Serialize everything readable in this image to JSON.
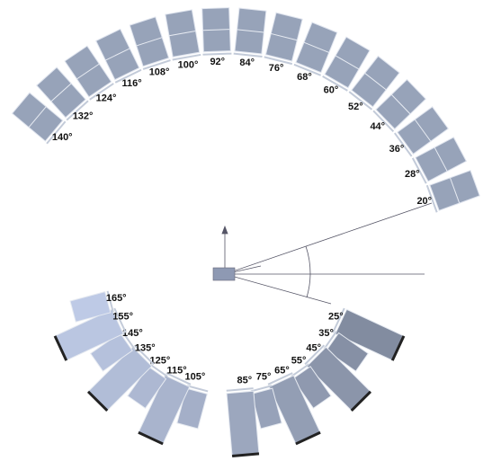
{
  "top_ring": {
    "labels": [
      "20°",
      "28°",
      "36°",
      "44°",
      "52°",
      "60°",
      "68°",
      "76°",
      "84°",
      "92°",
      "100°",
      "108°",
      "116°",
      "124°",
      "132°",
      "140°"
    ]
  },
  "bottom_ring": {
    "labels": [
      "25°",
      "35°",
      "45°",
      "55°",
      "65°",
      "75°",
      "85°",
      "105°",
      "115°",
      "125°",
      "135°",
      "145°",
      "155°",
      "165°"
    ]
  }
}
